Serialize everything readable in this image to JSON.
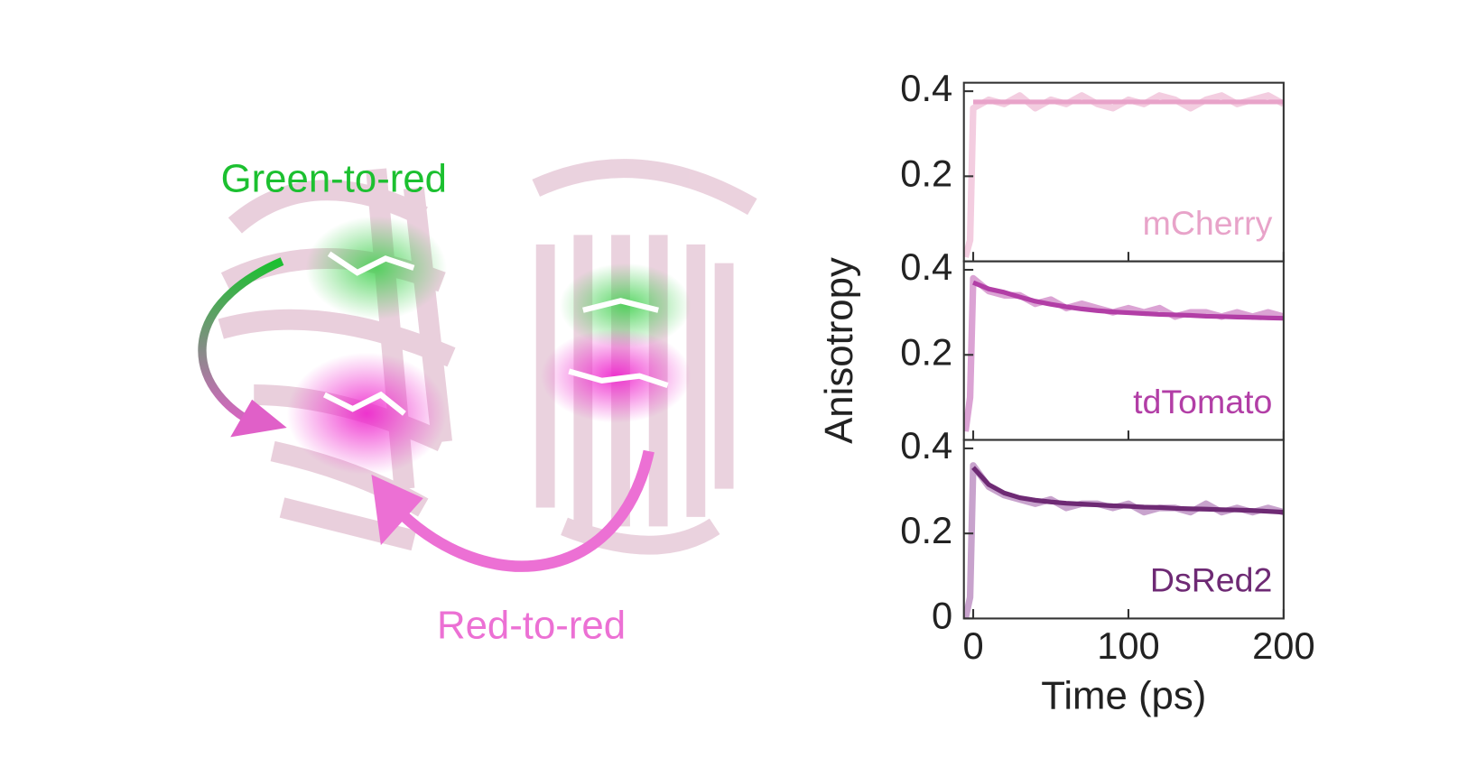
{
  "illustration": {
    "labels": [
      "Green-to-red",
      "Red-to-red"
    ]
  },
  "chart_data": [
    {
      "type": "line",
      "title": "mCherry",
      "title_color": "#e8a3c9",
      "x": [
        -5,
        -2,
        0,
        10,
        20,
        30,
        40,
        50,
        60,
        70,
        80,
        90,
        100,
        110,
        120,
        130,
        140,
        150,
        160,
        170,
        180,
        190,
        200
      ],
      "xlim": [
        -6,
        200
      ],
      "xticks": [
        0,
        100,
        200
      ],
      "ylim": [
        0,
        0.42
      ],
      "yticks": [
        0.2,
        0.4
      ],
      "series": [
        {
          "color": "#f3cde0",
          "values": [
            0.01,
            0.05,
            0.36,
            0.38,
            0.37,
            0.39,
            0.36,
            0.38,
            0.37,
            0.39,
            0.37,
            0.36,
            0.38,
            0.37,
            0.39,
            0.38,
            0.36,
            0.38,
            0.39,
            0.37,
            0.38,
            0.39,
            0.37
          ]
        },
        {
          "color": "#e8a3c9",
          "values": [
            null,
            null,
            0.375,
            0.375,
            0.375,
            0.375,
            0.375,
            0.375,
            0.375,
            0.375,
            0.375,
            0.375,
            0.375,
            0.375,
            0.375,
            0.375,
            0.375,
            0.375,
            0.375,
            0.375,
            0.375,
            0.375,
            0.375
          ]
        }
      ]
    },
    {
      "type": "line",
      "title": "tdTomato",
      "title_color": "#b23ea6",
      "ylabel": "Anisotropy",
      "x": [
        -5,
        -2,
        0,
        10,
        20,
        30,
        40,
        50,
        60,
        70,
        80,
        90,
        100,
        110,
        120,
        130,
        140,
        150,
        160,
        170,
        180,
        190,
        200
      ],
      "xlim": [
        -6,
        200
      ],
      "xticks": [
        0,
        100,
        200
      ],
      "ylim": [
        0,
        0.42
      ],
      "yticks": [
        0.2,
        0.4
      ],
      "series": [
        {
          "color": "#dba3d4",
          "values": [
            0.02,
            0.1,
            0.38,
            0.35,
            0.34,
            0.34,
            0.32,
            0.33,
            0.31,
            0.32,
            0.31,
            0.3,
            0.31,
            0.3,
            0.31,
            0.29,
            0.3,
            0.3,
            0.29,
            0.3,
            0.29,
            0.3,
            0.29
          ]
        },
        {
          "color": "#b23ea6",
          "values": [
            null,
            null,
            0.37,
            0.355,
            0.347,
            0.336,
            0.326,
            0.319,
            0.313,
            0.308,
            0.304,
            0.301,
            0.299,
            0.297,
            0.295,
            0.294,
            0.293,
            0.291,
            0.29,
            0.289,
            0.288,
            0.287,
            0.286
          ]
        }
      ]
    },
    {
      "type": "line",
      "title": "DsRed2",
      "title_color": "#6e2a74",
      "xlabel": "Time (ps)",
      "x": [
        -5,
        -2,
        0,
        10,
        20,
        30,
        40,
        50,
        60,
        70,
        80,
        90,
        100,
        110,
        120,
        130,
        140,
        150,
        160,
        170,
        180,
        190,
        200
      ],
      "xlim": [
        -6,
        200
      ],
      "xticks": [
        0,
        100,
        200
      ],
      "ylim": [
        0,
        0.42
      ],
      "yticks": [
        0,
        0.2,
        0.4
      ],
      "series": [
        {
          "color": "#c8a3cd",
          "values": [
            0.0,
            0.05,
            0.36,
            0.31,
            0.29,
            0.28,
            0.27,
            0.28,
            0.26,
            0.27,
            0.27,
            0.26,
            0.27,
            0.25,
            0.26,
            0.26,
            0.25,
            0.27,
            0.25,
            0.26,
            0.25,
            0.26,
            0.25
          ]
        },
        {
          "color": "#6e2a74",
          "values": [
            null,
            null,
            0.355,
            0.315,
            0.295,
            0.284,
            0.278,
            0.274,
            0.271,
            0.269,
            0.267,
            0.265,
            0.264,
            0.262,
            0.261,
            0.259,
            0.258,
            0.257,
            0.256,
            0.255,
            0.254,
            0.252,
            0.25
          ]
        }
      ]
    }
  ]
}
